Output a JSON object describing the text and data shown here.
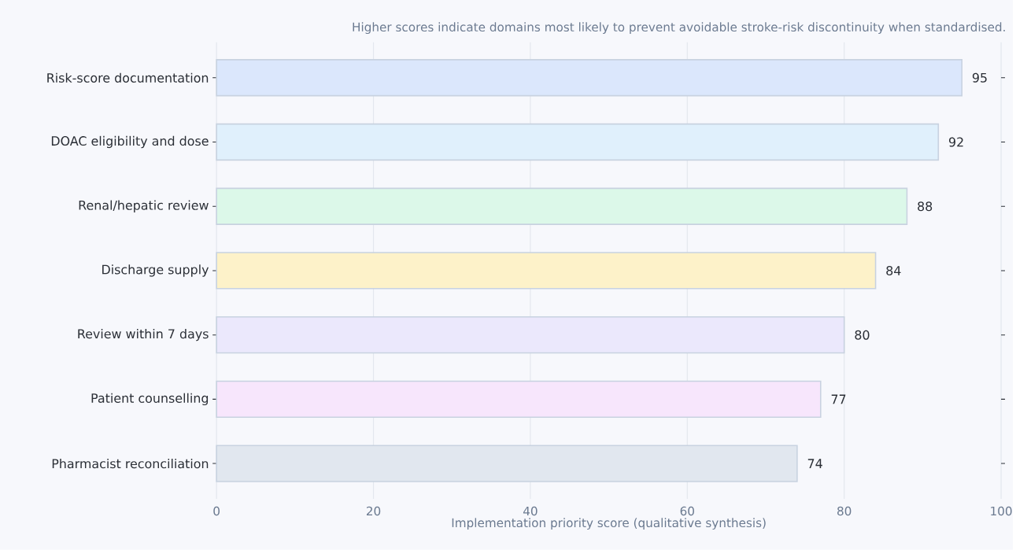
{
  "chart_data": {
    "type": "bar",
    "orientation": "horizontal",
    "title": "Higher scores indicate domains most likely to prevent avoidable stroke-risk discontinuity when standardised.",
    "xlabel": "Implementation priority score (qualitative synthesis)",
    "categories": [
      "Risk-score documentation",
      "DOAC eligibility and dose",
      "Renal/hepatic review",
      "Discharge supply",
      "Review within 7 days",
      "Patient counselling",
      "Pharmacist reconciliation"
    ],
    "values": [
      95,
      92,
      88,
      84,
      80,
      77,
      74
    ],
    "colors": [
      "#dbe7fc",
      "#e0f0fc",
      "#dcf8e9",
      "#fdf2c9",
      "#ebe8fc",
      "#f7e6fc",
      "#e1e7ef"
    ],
    "xlim": [
      0,
      100
    ],
    "xticks": [
      0,
      20,
      40,
      60,
      80,
      100
    ],
    "grid": "x",
    "data_labels": true
  }
}
